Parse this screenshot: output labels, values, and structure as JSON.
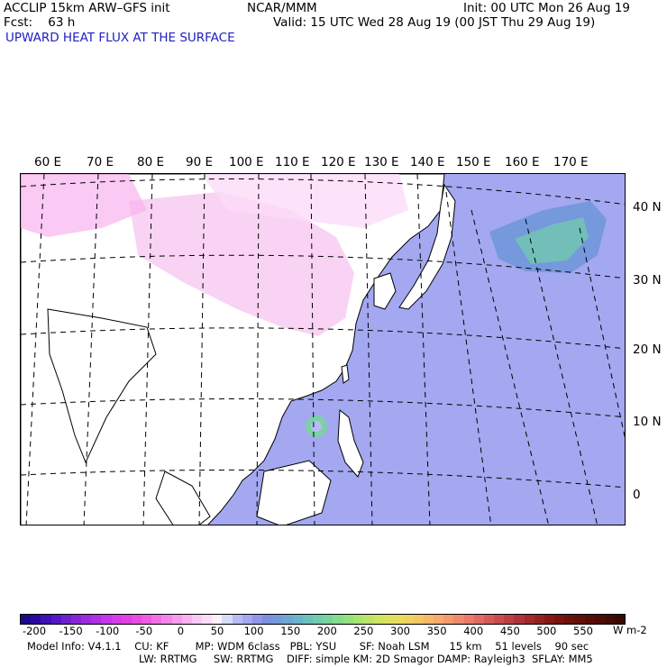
{
  "header": {
    "left1": "ACCLIP 15km ARW–GFS init",
    "center1": "NCAR/MMM",
    "right1": "Init: 00 UTC Mon 26 Aug 19",
    "left2": "Fcst:    63 h",
    "right2": "Valid: 15 UTC Wed 28 Aug 19 (00 JST Thu 29 Aug 19)",
    "field": "UPWARD HEAT FLUX AT THE SURFACE"
  },
  "lon_labels": [
    "60 E",
    "70 E",
    "80 E",
    "90 E",
    "100 E",
    "110 E",
    "120 E",
    "130 E",
    "140 E",
    "150 E",
    "160 E",
    "170 E"
  ],
  "lat_labels": [
    "40 N",
    "30 N",
    "20 N",
    "10 N",
    "0"
  ],
  "colorbar": {
    "ticks": [
      "-200",
      "-150",
      "-100",
      "-50",
      "0",
      "50",
      "100",
      "150",
      "200",
      "250",
      "300",
      "350",
      "400",
      "450",
      "500",
      "550"
    ],
    "unit": "W m-2",
    "colors": [
      "#1a0a8c",
      "#2a0aa0",
      "#3c12b4",
      "#5418c4",
      "#6c20d0",
      "#8426d8",
      "#9c2ce0",
      "#b030e4",
      "#c436e8",
      "#d43ce8",
      "#e040e4",
      "#e84ce0",
      "#ee5ce0",
      "#f270e4",
      "#f486e8",
      "#f69cec",
      "#f8b2f0",
      "#fac8f4",
      "#fcdcf8",
      "#ffeefc",
      "#d8dcf8",
      "#b8bcf4",
      "#a4a8f0",
      "#9096e8",
      "#7e8ee0",
      "#7698dc",
      "#70a6d4",
      "#6cb4c8",
      "#6cc0bc",
      "#70ccac",
      "#78d49c",
      "#86dc8c",
      "#96e07c",
      "#a8e470",
      "#bce468",
      "#cee462",
      "#dce25e",
      "#e8dc5e",
      "#f0d260",
      "#f4c664",
      "#f6b868",
      "#f6aa6c",
      "#f49a6e",
      "#f08a6e",
      "#ea7a6a",
      "#e06a64",
      "#d45a5a",
      "#c84c50",
      "#bc3e44",
      "#ae3238",
      "#a0282c",
      "#922020",
      "#841818",
      "#781410",
      "#6c120c",
      "#62100a",
      "#580e08",
      "#4e0c06",
      "#440a04",
      "#3a0802"
    ]
  },
  "footer": {
    "line1": "Model Info: V4.1.1    CU: KF        MP: WDM 6class   PBL: YSU       SF: Noah LSM      15 km    51 levels    90 sec",
    "line2": "LW: RRTMG     SW: RRTMG    DIFF: simple KM: 2D Smagor DAMP: Rayleigh3  SFLAY: MM5"
  },
  "colors": {
    "header_field": "#2020c0",
    "ocean_flux": "#a4a8f0",
    "land_negative": "#f8c8f0",
    "strong_flux": "#70ccac"
  }
}
